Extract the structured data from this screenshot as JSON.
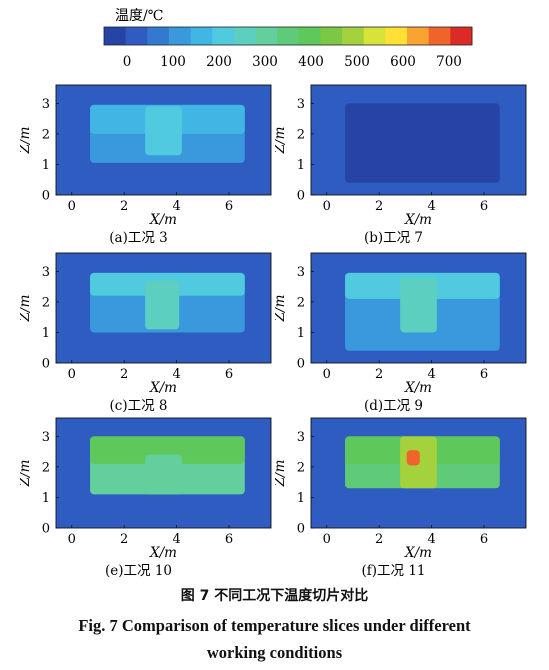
{
  "figure": {
    "caption_cn": "图 7   不同工况下温度切片对比",
    "caption_en_line1": "Fig. 7    Comparison of temperature slices under different",
    "caption_en_line2": "working conditions"
  },
  "colorbar": {
    "title": "温度/℃",
    "ticks": [
      "0",
      "100",
      "200",
      "300",
      "400",
      "500",
      "600",
      "700"
    ],
    "tick_values": [
      0,
      100,
      200,
      300,
      400,
      500,
      600,
      700
    ],
    "range": [
      -50,
      750
    ],
    "colors": [
      "#2644a6",
      "#2f5cc0",
      "#3479d0",
      "#3a98dc",
      "#41b6e4",
      "#4fcadf",
      "#5ccfc0",
      "#62cf9c",
      "#5fcb78",
      "#5ec85a",
      "#7cc844",
      "#a4d23c",
      "#d7e23a",
      "#ffe035",
      "#f9a331",
      "#f0632b",
      "#dc2a26"
    ]
  },
  "chart_data": [
    {
      "type": "heatmap",
      "panel": "a",
      "caption": "(a)工况 3",
      "xlabel": "X/m",
      "ylabel": "Z/m",
      "xticks": [
        "0",
        "2",
        "4",
        "6"
      ],
      "yticks": [
        "0",
        "1",
        "2",
        "3"
      ],
      "xlim": [
        -0.6,
        7.6
      ],
      "ylim": [
        0,
        3.6
      ],
      "background_temperature": 0,
      "regions": [
        {
          "name": "hot-layer",
          "x": [
            0.7,
            6.6
          ],
          "z": [
            1.05,
            2.95
          ],
          "temperature": 110
        },
        {
          "name": "upper-layer",
          "x": [
            0.7,
            6.6
          ],
          "z": [
            2.0,
            2.95
          ],
          "temperature": 180
        },
        {
          "name": "plume",
          "x": [
            2.8,
            4.2
          ],
          "z": [
            1.3,
            2.9
          ],
          "temperature": 230
        }
      ]
    },
    {
      "type": "heatmap",
      "panel": "b",
      "caption": "(b)工况 7",
      "xlabel": "X/m",
      "ylabel": "Z/m",
      "xticks": [
        "0",
        "2",
        "4",
        "6"
      ],
      "yticks": [
        "0",
        "1",
        "2",
        "3"
      ],
      "xlim": [
        -0.6,
        7.6
      ],
      "ylim": [
        0,
        3.6
      ],
      "background_temperature": 0,
      "regions": [
        {
          "name": "cool-zone",
          "x": [
            0.7,
            6.6
          ],
          "z": [
            0.4,
            3.0
          ],
          "temperature": -20
        }
      ]
    },
    {
      "type": "heatmap",
      "panel": "c",
      "caption": "(c)工况 8",
      "xlabel": "X/m",
      "ylabel": "Z/m",
      "xticks": [
        "0",
        "2",
        "4",
        "6"
      ],
      "yticks": [
        "0",
        "1",
        "2",
        "3"
      ],
      "xlim": [
        -0.6,
        7.6
      ],
      "ylim": [
        0,
        3.6
      ],
      "background_temperature": 0,
      "regions": [
        {
          "name": "hot-layer",
          "x": [
            0.7,
            6.6
          ],
          "z": [
            1.0,
            2.95
          ],
          "temperature": 120
        },
        {
          "name": "upper-layer",
          "x": [
            0.7,
            6.6
          ],
          "z": [
            2.2,
            2.95
          ],
          "temperature": 200
        },
        {
          "name": "plume",
          "x": [
            2.8,
            4.1
          ],
          "z": [
            1.1,
            2.7
          ],
          "temperature": 260
        }
      ]
    },
    {
      "type": "heatmap",
      "panel": "d",
      "caption": "(d)工况 9",
      "xlabel": "X/m",
      "ylabel": "Z/m",
      "xticks": [
        "0",
        "2",
        "4",
        "6"
      ],
      "yticks": [
        "0",
        "1",
        "2",
        "3"
      ],
      "xlim": [
        -0.6,
        7.6
      ],
      "ylim": [
        0,
        3.6
      ],
      "background_temperature": 0,
      "regions": [
        {
          "name": "hot-layer",
          "x": [
            0.7,
            6.6
          ],
          "z": [
            0.4,
            2.95
          ],
          "temperature": 110
        },
        {
          "name": "upper-layer",
          "x": [
            0.7,
            6.6
          ],
          "z": [
            2.1,
            2.95
          ],
          "temperature": 200
        },
        {
          "name": "plume",
          "x": [
            2.8,
            4.2
          ],
          "z": [
            1.0,
            2.8
          ],
          "temperature": 250
        }
      ]
    },
    {
      "type": "heatmap",
      "panel": "e",
      "caption": "(e)工况 10",
      "xlabel": "X/m",
      "ylabel": "Z/m",
      "xticks": [
        "0",
        "2",
        "4",
        "6"
      ],
      "yticks": [
        "0",
        "1",
        "2",
        "3"
      ],
      "xlim": [
        -0.6,
        7.6
      ],
      "ylim": [
        0,
        3.6
      ],
      "background_temperature": 0,
      "regions": [
        {
          "name": "hot-layer",
          "x": [
            0.7,
            6.6
          ],
          "z": [
            1.1,
            3.0
          ],
          "temperature": 320
        },
        {
          "name": "upper-layer",
          "x": [
            0.7,
            6.6
          ],
          "z": [
            2.1,
            3.0
          ],
          "temperature": 380
        },
        {
          "name": "plume",
          "x": [
            2.8,
            4.2
          ],
          "z": [
            1.1,
            2.4
          ],
          "temperature": 300
        }
      ]
    },
    {
      "type": "heatmap",
      "panel": "f",
      "caption": "(f)工况 11",
      "xlabel": "X/m",
      "ylabel": "Z/m",
      "xticks": [
        "0",
        "2",
        "4",
        "6"
      ],
      "yticks": [
        "0",
        "1",
        "2",
        "3"
      ],
      "xlim": [
        -0.6,
        7.6
      ],
      "ylim": [
        0,
        3.6
      ],
      "background_temperature": 0,
      "regions": [
        {
          "name": "hot-layer",
          "x": [
            0.7,
            6.6
          ],
          "z": [
            1.3,
            3.0
          ],
          "temperature": 330
        },
        {
          "name": "upper-layer",
          "x": [
            0.7,
            6.6
          ],
          "z": [
            2.1,
            3.0
          ],
          "temperature": 400
        },
        {
          "name": "plume",
          "x": [
            2.8,
            4.2
          ],
          "z": [
            1.3,
            3.0
          ],
          "temperature": 500
        },
        {
          "name": "fire-core",
          "x": [
            3.05,
            3.55
          ],
          "z": [
            2.05,
            2.55
          ],
          "temperature": 700
        }
      ]
    }
  ]
}
